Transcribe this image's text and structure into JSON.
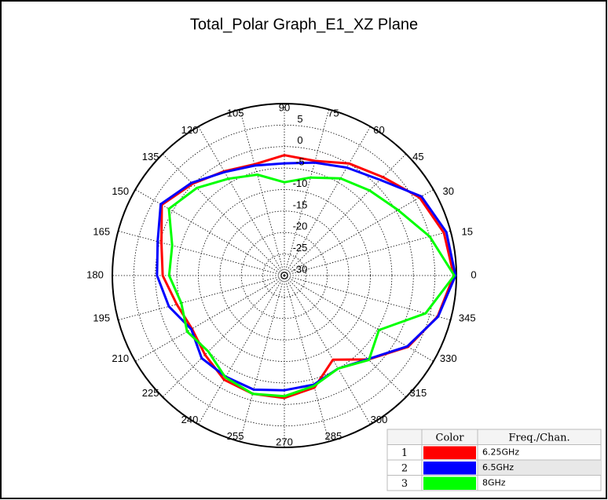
{
  "chart_data": {
    "type": "polar",
    "title": "Total_Polar Graph_E1_XZ Plane",
    "theta": [
      0,
      15,
      30,
      45,
      60,
      75,
      90,
      105,
      120,
      135,
      150,
      165,
      180,
      195,
      210,
      225,
      240,
      255,
      270,
      285,
      300,
      315,
      330,
      345
    ],
    "thetaticks": [
      0,
      15,
      30,
      45,
      60,
      75,
      90,
      105,
      120,
      135,
      150,
      165,
      180,
      195,
      210,
      225,
      240,
      255,
      270,
      285,
      300,
      315,
      330,
      345
    ],
    "rlim": [
      -30,
      10
    ],
    "rticks": [
      5,
      0,
      -5,
      -10,
      -15,
      -20,
      -25,
      -30
    ],
    "grid": true,
    "series": [
      {
        "name": "6.25GHz",
        "color": "#ff0000",
        "values": [
          9.4,
          8.4,
          6.3,
          2.4,
          0.1,
          -2.4,
          -2,
          -3.2,
          -2,
          0.2,
          2.9,
          -0.4,
          -1.7,
          -4.1,
          -5.2,
          -3.9,
          -2,
          -1.5,
          -1.5,
          -3,
          -7.4,
          -2.4,
          3.2,
          6.9
        ]
      },
      {
        "name": "6.5GHz",
        "color": "#0000ff",
        "values": [
          9.8,
          9,
          6.8,
          1.5,
          -1,
          -2.8,
          -3.9,
          -3.5,
          -2.2,
          0.5,
          3.2,
          0.5,
          -0.4,
          -2.2,
          -5,
          -2.8,
          -2.8,
          -2.5,
          -3.3,
          -3.7,
          -5,
          -2.5,
          3,
          7
        ]
      },
      {
        "name": "8GHz",
        "color": "#00ff00",
        "values": [
          9.5,
          5,
          0.5,
          -2,
          -3.9,
          -6.4,
          -8.3,
          -5.7,
          -4,
          -1.2,
          1,
          -3,
          -3.2,
          -5.2,
          -3.9,
          -5,
          -2.6,
          -1.5,
          -1.9,
          -3.4,
          -5,
          -2.2,
          -4.6,
          4
        ]
      }
    ],
    "legend_headers": [
      "Color",
      "Freq./Chan."
    ],
    "legend_index": [
      1,
      2,
      3
    ]
  }
}
